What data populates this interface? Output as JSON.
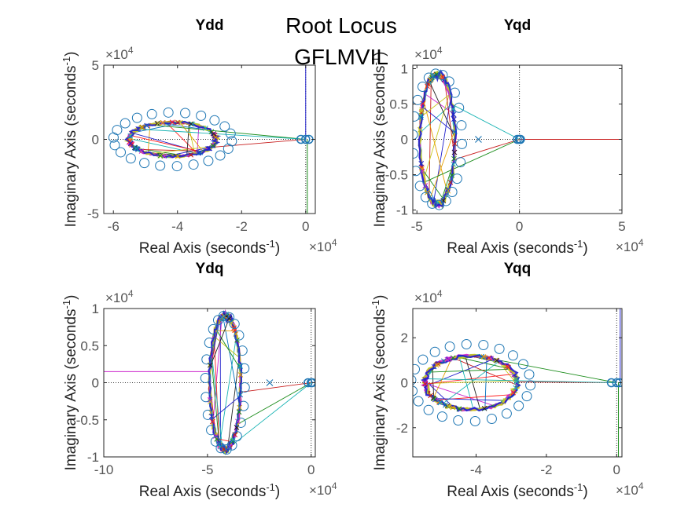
{
  "figure": {
    "suptitle": "Root Locus",
    "subtitle": "GFLMVIL"
  },
  "chart_data": [
    {
      "type": "scatter",
      "title": "Ydd",
      "xlabel": "Real Axis (seconds",
      "ylabel": "Imaginary Axis (seconds",
      "unit_exp": "-1",
      "unit_close": ")",
      "x_multiplier": "×10",
      "y_multiplier": "×10",
      "multiplier_exp": "4",
      "xlim": [
        -6.3,
        0.3
      ],
      "ylim": [
        -5,
        5
      ],
      "xticks": [
        -6,
        -4,
        -2,
        0
      ],
      "yticks": [
        -5,
        0,
        5
      ],
      "xtick_labels": [
        "-6",
        "-4",
        "-2",
        "0"
      ],
      "ytick_labels": [
        "-5",
        "0",
        "5"
      ],
      "locus_ellipse": {
        "center": [
          -4.15,
          0
        ],
        "rx": 1.35,
        "ry": 1.15
      },
      "zeros_ring": {
        "center": [
          -4.15,
          0
        ],
        "rx": 1.85,
        "ry": 1.85
      },
      "origin_cluster": [
        [
          -0.15,
          0
        ],
        [
          0.0,
          0
        ],
        [
          0.1,
          0
        ]
      ],
      "poles_x": [],
      "branch_lines": [
        {
          "x": [
            0.0,
            0.0
          ],
          "y": [
            0,
            5
          ],
          "color": "#1f1fcc"
        },
        {
          "x": [
            0.05,
            0.05
          ],
          "y": [
            0,
            -5
          ],
          "color": "#1a8c1a"
        }
      ]
    },
    {
      "type": "scatter",
      "title": "Yqd",
      "xlabel": "Real Axis (seconds",
      "ylabel": "Imaginary Axis (seconds",
      "unit_exp": "-1",
      "unit_close": ")",
      "x_multiplier": "×10",
      "y_multiplier": "×10",
      "multiplier_exp": "4",
      "xlim": [
        -5.2,
        5
      ],
      "ylim": [
        -1.05,
        1.05
      ],
      "xticks": [
        -5,
        0,
        5
      ],
      "yticks": [
        -1,
        -0.5,
        0,
        0.5,
        1
      ],
      "xtick_labels": [
        "-5",
        "0",
        "5"
      ],
      "ytick_labels": [
        "-1",
        "-0.5",
        "0",
        "0.5",
        "1"
      ],
      "locus_ellipse": {
        "center": [
          -4.0,
          0
        ],
        "rx": 0.85,
        "ry": 0.92
      },
      "zeros_ring": {
        "center": [
          -4.0,
          0
        ],
        "rx": 1.2,
        "ry": 0.95
      },
      "origin_cluster": [
        [
          -0.1,
          0
        ],
        [
          0.0,
          0
        ],
        [
          0.05,
          0
        ]
      ],
      "poles_x": [
        [
          -2.0,
          0
        ]
      ],
      "branch_lines": [
        {
          "x": [
            0.0,
            5.0
          ],
          "y": [
            0,
            0
          ],
          "color": "#c81e1e"
        }
      ]
    },
    {
      "type": "scatter",
      "title": "Ydq",
      "xlabel": "Real Axis (seconds",
      "ylabel": "Imaginary Axis (seconds",
      "unit_exp": "-1",
      "unit_close": ")",
      "x_multiplier": "×10",
      "y_multiplier": "×10",
      "multiplier_exp": "4",
      "xlim": [
        -10,
        0.2
      ],
      "ylim": [
        -1,
        1
      ],
      "xticks": [
        -10,
        -5,
        0
      ],
      "yticks": [
        -1,
        -0.5,
        0,
        0.5,
        1
      ],
      "xtick_labels": [
        "-10",
        "-5",
        "0"
      ],
      "ytick_labels": [
        "-1",
        "-0.5",
        "0",
        "0.5",
        "1"
      ],
      "locus_ellipse": {
        "center": [
          -4.15,
          0
        ],
        "rx": 0.75,
        "ry": 0.9
      },
      "zeros_ring": {
        "center": [
          -4.15,
          0
        ],
        "rx": 0.95,
        "ry": 0.92
      },
      "origin_cluster": [
        [
          -0.15,
          0
        ],
        [
          0.0,
          0
        ],
        [
          0.05,
          0
        ]
      ],
      "poles_x": [
        [
          -2.0,
          0
        ]
      ],
      "branch_lines": [
        {
          "x": [
            -10,
            -4.9
          ],
          "y": [
            0.15,
            0.15
          ],
          "color": "#cc22cc"
        }
      ]
    },
    {
      "type": "scatter",
      "title": "Yqq",
      "xlabel": "Real Axis (seconds",
      "ylabel": "Imaginary Axis (seconds",
      "unit_exp": "-1",
      "unit_close": ")",
      "x_multiplier": "×10",
      "y_multiplier": "×10",
      "multiplier_exp": "4",
      "xlim": [
        -5.8,
        0.15
      ],
      "ylim": [
        -3.3,
        3.3
      ],
      "xticks": [
        -4,
        -2,
        0
      ],
      "yticks": [
        -2,
        0,
        2
      ],
      "xtick_labels": [
        "-4",
        "-2",
        "0"
      ],
      "ytick_labels": [
        "-2",
        "0",
        "2"
      ],
      "locus_ellipse": {
        "center": [
          -4.15,
          0
        ],
        "rx": 1.3,
        "ry": 1.2
      },
      "zeros_ring": {
        "center": [
          -4.15,
          0
        ],
        "rx": 1.7,
        "ry": 1.75
      },
      "origin_cluster": [
        [
          -0.15,
          0
        ],
        [
          0.0,
          0
        ],
        [
          0.08,
          0
        ]
      ],
      "poles_x": [],
      "branch_lines": [
        {
          "x": [
            0.1,
            0.1
          ],
          "y": [
            0,
            3.3
          ],
          "color": "#1f1fcc"
        },
        {
          "x": [
            0.05,
            0.05
          ],
          "y": [
            0,
            -3.3
          ],
          "color": "#1a8c1a"
        }
      ]
    }
  ]
}
